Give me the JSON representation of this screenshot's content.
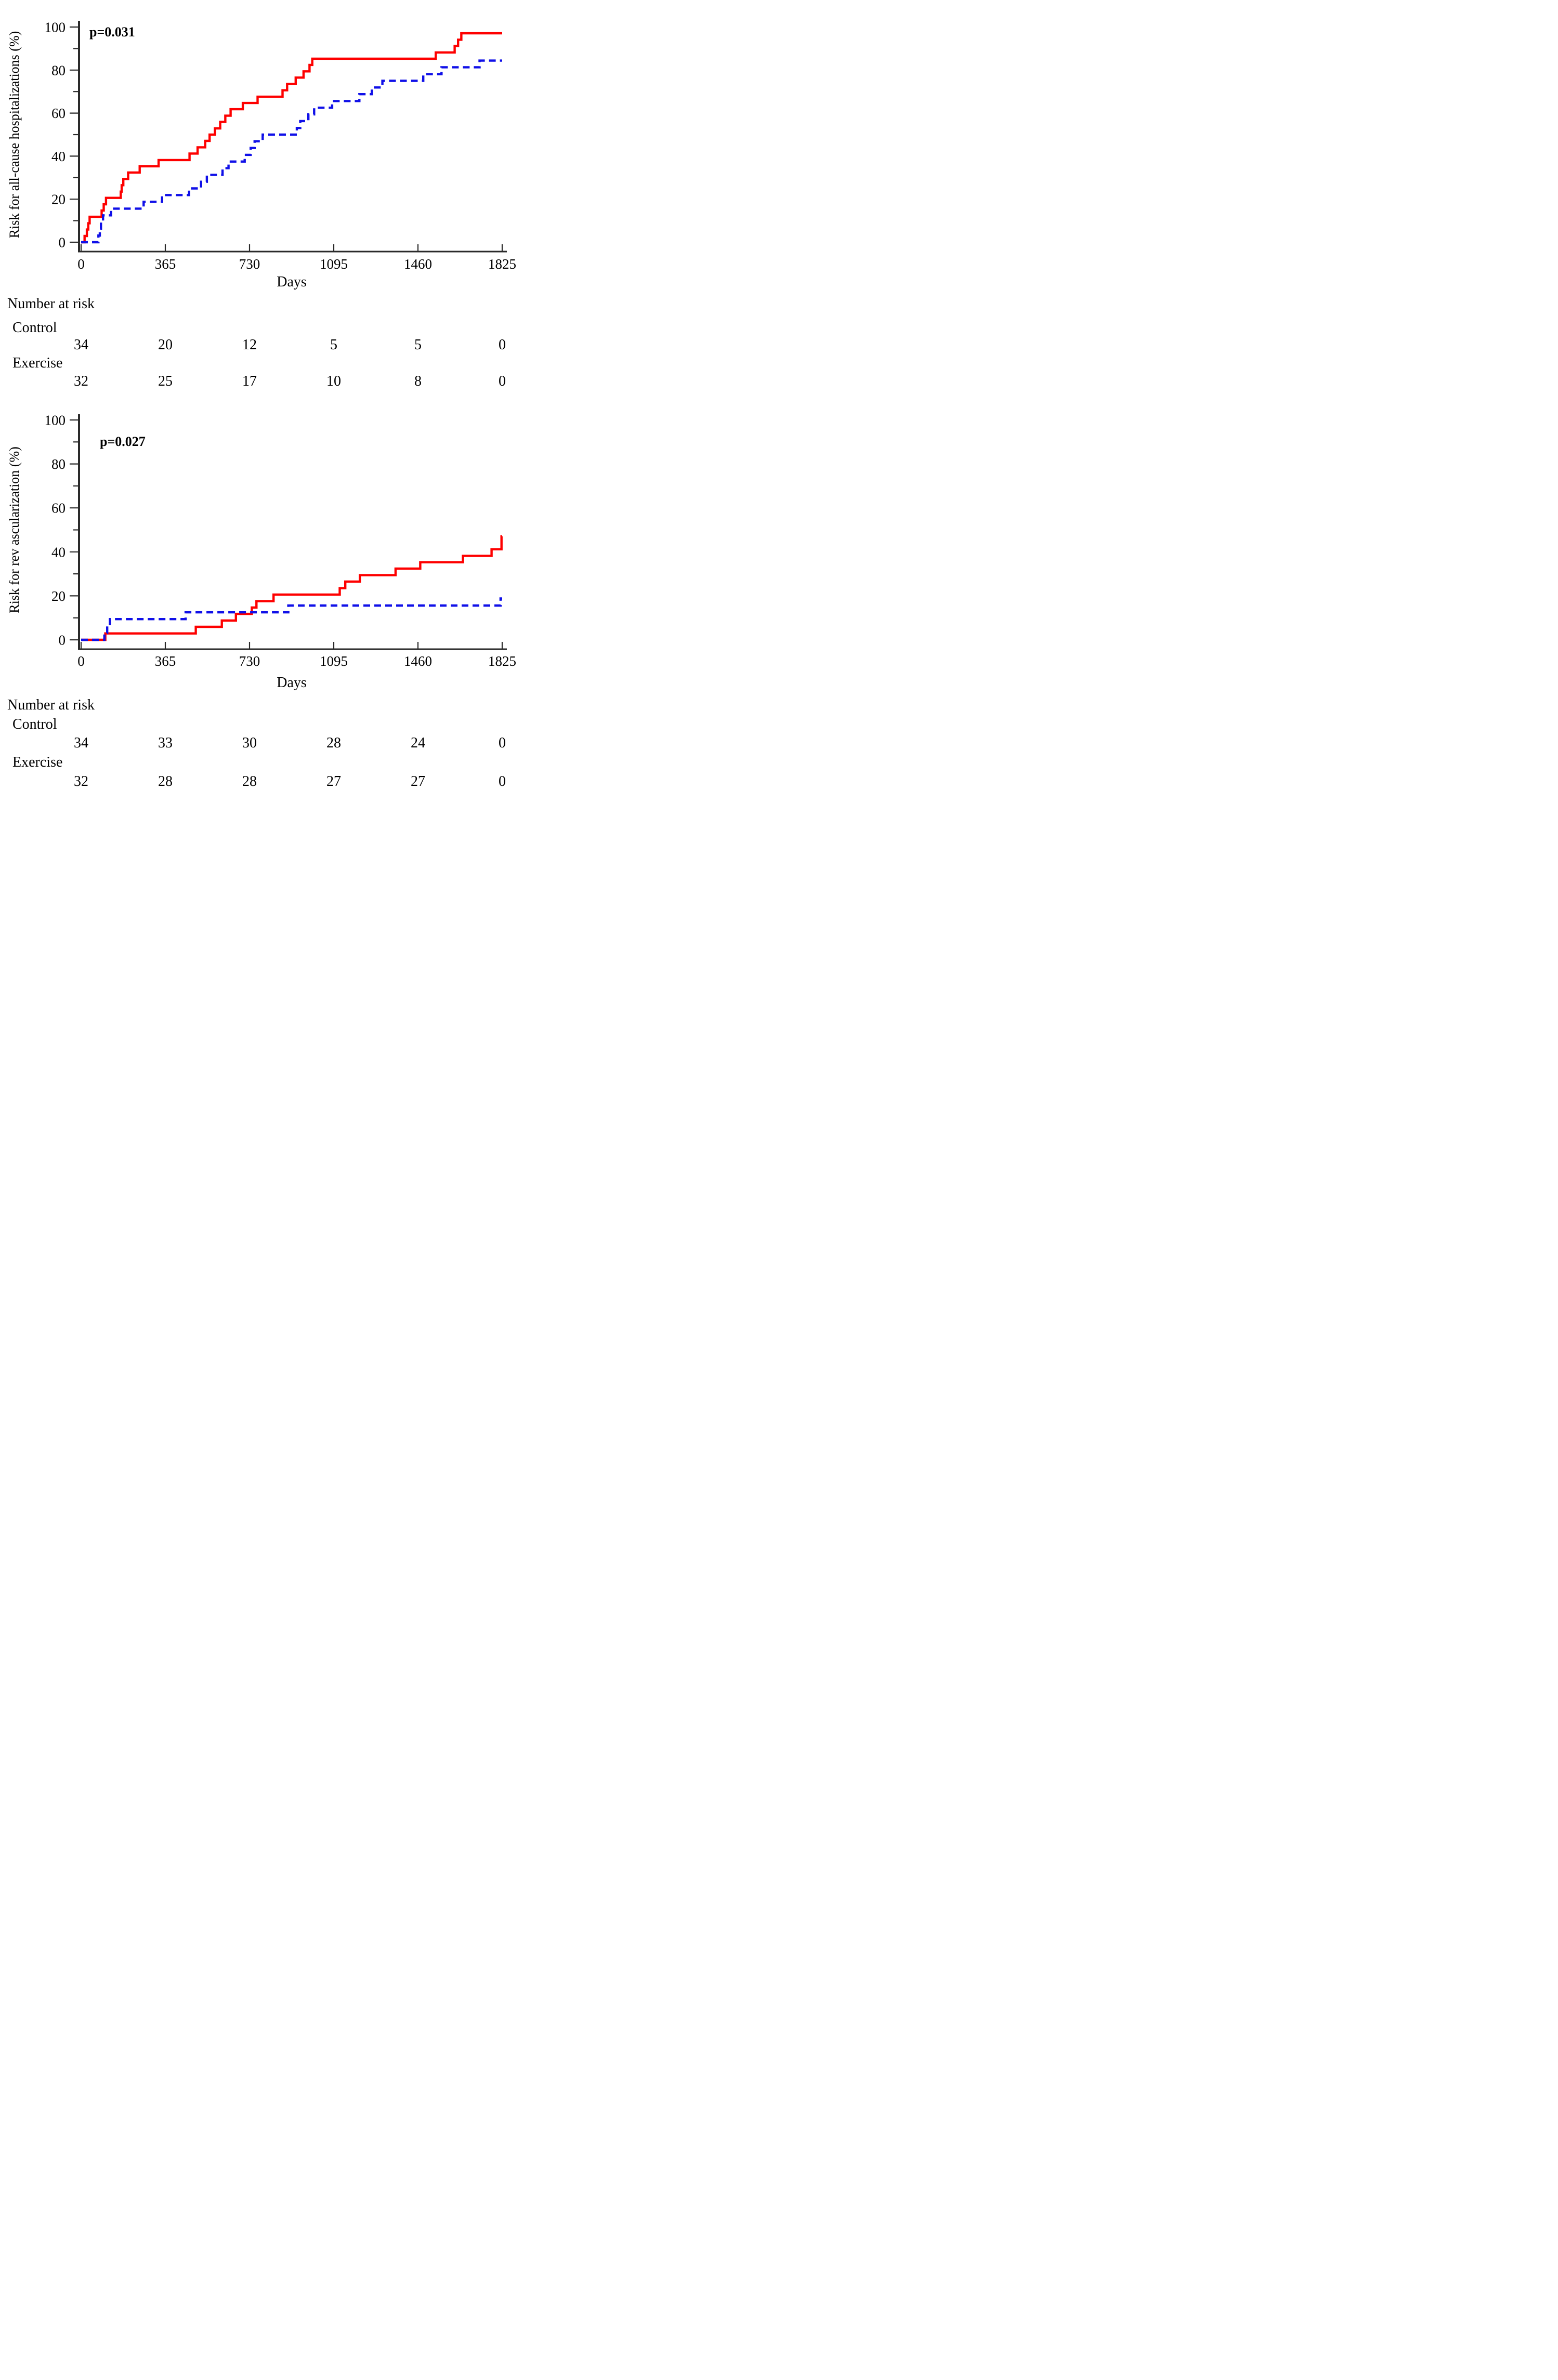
{
  "figure": {
    "background": "#ffffff",
    "axis_color": "#2a2a2a",
    "text_color": "#000000",
    "groups": [
      "Control",
      "Exercise"
    ]
  },
  "chart_data": [
    {
      "type": "line",
      "step": true,
      "panel": "all-cause-hospitalizations",
      "p_value_label": "p=0.031",
      "ylabel": "Risk for all-cause hospitalizations (%)",
      "xlabel": "Days",
      "xlim": [
        0,
        1825
      ],
      "ylim": [
        0,
        100
      ],
      "xticks": [
        0,
        365,
        730,
        1095,
        1460,
        1825
      ],
      "yticks": [
        0,
        20,
        40,
        60,
        80,
        100
      ],
      "minor_ytick_step": 10,
      "grid": false,
      "legend": "none",
      "series": [
        {
          "name": "Control",
          "color": "#fe0000",
          "line_style": "solid",
          "points": [
            [
              0,
              0
            ],
            [
              15,
              2.9
            ],
            [
              25,
              5.9
            ],
            [
              31,
              8.8
            ],
            [
              37,
              11.8
            ],
            [
              89,
              14.7
            ],
            [
              98,
              17.6
            ],
            [
              108,
              20.6
            ],
            [
              172,
              23.5
            ],
            [
              176,
              26.5
            ],
            [
              183,
              29.4
            ],
            [
              204,
              32.4
            ],
            [
              254,
              35.3
            ],
            [
              336,
              38.2
            ],
            [
              470,
              41.2
            ],
            [
              505,
              44.1
            ],
            [
              538,
              47.1
            ],
            [
              557,
              50.0
            ],
            [
              580,
              52.9
            ],
            [
              603,
              55.9
            ],
            [
              625,
              58.8
            ],
            [
              648,
              61.8
            ],
            [
              701,
              64.7
            ],
            [
              765,
              67.6
            ],
            [
              873,
              70.6
            ],
            [
              893,
              73.5
            ],
            [
              930,
              76.5
            ],
            [
              964,
              79.4
            ],
            [
              990,
              82.4
            ],
            [
              1002,
              85.3
            ],
            [
              1537,
              88.2
            ],
            [
              1619,
              91.2
            ],
            [
              1634,
              94.1
            ],
            [
              1648,
              97.1
            ],
            [
              1825,
              97.1
            ]
          ]
        },
        {
          "name": "Exercise",
          "color": "#1010e8",
          "line_style": "dashed",
          "points": [
            [
              0,
              0
            ],
            [
              75,
              3.1
            ],
            [
              81,
              6.3
            ],
            [
              86,
              9.4
            ],
            [
              95,
              12.5
            ],
            [
              130,
              15.6
            ],
            [
              271,
              18.8
            ],
            [
              351,
              21.9
            ],
            [
              468,
              25.0
            ],
            [
              520,
              28.1
            ],
            [
              545,
              31.3
            ],
            [
              613,
              34.4
            ],
            [
              639,
              37.5
            ],
            [
              709,
              40.6
            ],
            [
              735,
              43.8
            ],
            [
              752,
              46.9
            ],
            [
              787,
              50.0
            ],
            [
              935,
              53.1
            ],
            [
              950,
              56.3
            ],
            [
              985,
              59.4
            ],
            [
              1010,
              62.5
            ],
            [
              1088,
              65.6
            ],
            [
              1206,
              68.8
            ],
            [
              1260,
              71.9
            ],
            [
              1306,
              75.0
            ],
            [
              1483,
              78.1
            ],
            [
              1562,
              81.3
            ],
            [
              1727,
              84.4
            ],
            [
              1825,
              84.4
            ]
          ]
        }
      ],
      "number_at_risk": {
        "heading": "Number at risk",
        "times": [
          0,
          365,
          730,
          1095,
          1460,
          1825
        ],
        "rows": [
          {
            "name": "Control",
            "values": [
              34,
              20,
              12,
              5,
              5,
              0
            ]
          },
          {
            "name": "Exercise",
            "values": [
              32,
              25,
              17,
              10,
              8,
              0
            ]
          }
        ]
      }
    },
    {
      "type": "line",
      "step": true,
      "panel": "revascularization",
      "p_value_label": "p=0.027",
      "ylabel": "Risk for rev ascularization (%)",
      "xlabel": "Days",
      "xlim": [
        0,
        1825
      ],
      "ylim": [
        0,
        100
      ],
      "xticks": [
        0,
        365,
        730,
        1095,
        1460,
        1825
      ],
      "yticks": [
        0,
        20,
        40,
        60,
        80,
        100
      ],
      "minor_ytick_step": 10,
      "grid": false,
      "legend": "none",
      "series": [
        {
          "name": "Control",
          "color": "#fe0000",
          "line_style": "solid",
          "points": [
            [
              0,
              0
            ],
            [
              105,
              2.9
            ],
            [
              497,
              5.9
            ],
            [
              610,
              8.8
            ],
            [
              671,
              11.8
            ],
            [
              740,
              14.7
            ],
            [
              760,
              17.6
            ],
            [
              834,
              20.6
            ],
            [
              1121,
              23.5
            ],
            [
              1145,
              26.5
            ],
            [
              1208,
              29.4
            ],
            [
              1363,
              32.4
            ],
            [
              1470,
              35.3
            ],
            [
              1655,
              38.2
            ],
            [
              1779,
              41.2
            ],
            [
              1822,
              47.1
            ],
            [
              1825,
              47.1
            ]
          ]
        },
        {
          "name": "Exercise",
          "color": "#1010e8",
          "line_style": "dashed",
          "points": [
            [
              0,
              0
            ],
            [
              101,
              3.1
            ],
            [
              113,
              6.3
            ],
            [
              125,
              9.4
            ],
            [
              453,
              12.5
            ],
            [
              898,
              15.6
            ],
            [
              1818,
              18.8
            ],
            [
              1825,
              18.8
            ]
          ]
        }
      ],
      "number_at_risk": {
        "heading": "Number at risk",
        "times": [
          0,
          365,
          730,
          1095,
          1460,
          1825
        ],
        "rows": [
          {
            "name": "Control",
            "values": [
              34,
              33,
              30,
              28,
              24,
              0
            ]
          },
          {
            "name": "Exercise",
            "values": [
              32,
              28,
              28,
              27,
              27,
              0
            ]
          }
        ]
      }
    }
  ]
}
